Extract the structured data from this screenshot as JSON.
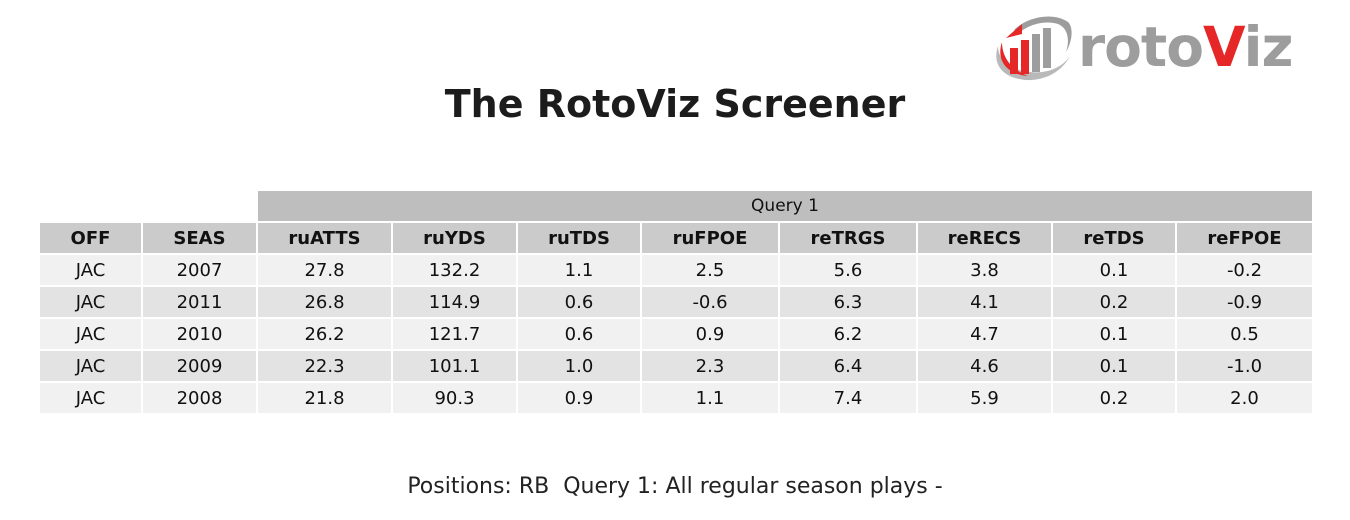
{
  "logo": {
    "text_grey_1": "roto",
    "text_red": "V",
    "text_grey_2": "iz",
    "colors": {
      "red": "#e62727",
      "grey": "#9d9d9d"
    }
  },
  "title": "The RotoViz Screener",
  "table": {
    "group_label": "Query 1",
    "columns": [
      "OFF",
      "SEAS",
      "ruATTS",
      "ruYDS",
      "ruTDS",
      "ruFPOE",
      "reTRGS",
      "reRECS",
      "reTDS",
      "reFPOE"
    ],
    "rows": [
      [
        "JAC",
        "2007",
        "27.8",
        "132.2",
        "1.1",
        "2.5",
        "5.6",
        "3.8",
        "0.1",
        "-0.2"
      ],
      [
        "JAC",
        "2011",
        "26.8",
        "114.9",
        "0.6",
        "-0.6",
        "6.3",
        "4.1",
        "0.2",
        "-0.9"
      ],
      [
        "JAC",
        "2010",
        "26.2",
        "121.7",
        "0.6",
        "0.9",
        "6.2",
        "4.7",
        "0.1",
        "0.5"
      ],
      [
        "JAC",
        "2009",
        "22.3",
        "101.1",
        "1.0",
        "2.3",
        "6.4",
        "4.6",
        "0.1",
        "-1.0"
      ],
      [
        "JAC",
        "2008",
        "21.8",
        "90.3",
        "0.9",
        "1.1",
        "7.4",
        "5.9",
        "0.2",
        "2.0"
      ]
    ]
  },
  "footer": "Positions: RB  Query 1: All regular season plays -"
}
